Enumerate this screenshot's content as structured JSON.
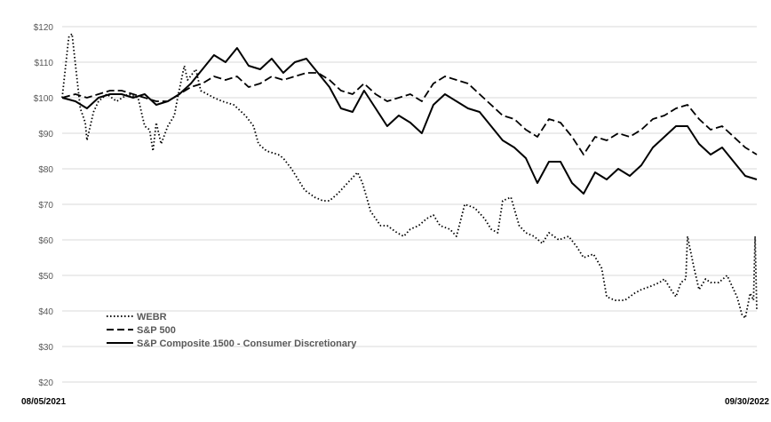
{
  "chart_data": {
    "type": "line",
    "title": "",
    "xlabel": "",
    "ylabel": "",
    "x_labels": [
      "08/05/2021",
      "09/30/2022"
    ],
    "x_range": [
      "2021-08-05",
      "2022-09-30"
    ],
    "y_ticks": [
      "$20",
      "$30",
      "$40",
      "$50",
      "$60",
      "$70",
      "$80",
      "$90",
      "$100",
      "$110",
      "$120"
    ],
    "ylim": [
      20,
      120
    ],
    "grid": "horizontal",
    "legend_position": "bottom-left",
    "series": [
      {
        "name": "WEBR",
        "style": "dotted",
        "color": "#000000",
        "points": [
          [
            "2021-08-05",
            100
          ],
          [
            "2021-08-09",
            117
          ],
          [
            "2021-08-11",
            118
          ],
          [
            "2021-08-16",
            97
          ],
          [
            "2021-08-19",
            93
          ],
          [
            "2021-08-20",
            88
          ],
          [
            "2021-08-24",
            96
          ],
          [
            "2021-08-27",
            99
          ],
          [
            "2021-09-01",
            101
          ],
          [
            "2021-09-07",
            99
          ],
          [
            "2021-09-14",
            101
          ],
          [
            "2021-09-20",
            100
          ],
          [
            "2021-09-24",
            92
          ],
          [
            "2021-09-27",
            91
          ],
          [
            "2021-09-29",
            85
          ],
          [
            "2021-10-01",
            93
          ],
          [
            "2021-10-04",
            87
          ],
          [
            "2021-10-08",
            92
          ],
          [
            "2021-10-12",
            95
          ],
          [
            "2021-10-14",
            100
          ],
          [
            "2021-10-18",
            109
          ],
          [
            "2021-10-20",
            105
          ],
          [
            "2021-10-25",
            108
          ],
          [
            "2021-10-28",
            102
          ],
          [
            "2021-11-05",
            100
          ],
          [
            "2021-11-10",
            99
          ],
          [
            "2021-11-17",
            98
          ],
          [
            "2021-11-24",
            95
          ],
          [
            "2021-11-29",
            92
          ],
          [
            "2021-12-02",
            87
          ],
          [
            "2021-12-07",
            85
          ],
          [
            "2021-12-14",
            84
          ],
          [
            "2021-12-17",
            83
          ],
          [
            "2021-12-22",
            80
          ],
          [
            "2021-12-30",
            74
          ],
          [
            "2022-01-05",
            72
          ],
          [
            "2022-01-10",
            71
          ],
          [
            "2022-01-14",
            71
          ],
          [
            "2022-01-19",
            73
          ],
          [
            "2022-01-25",
            76
          ],
          [
            "2022-01-31",
            79
          ],
          [
            "2022-02-03",
            76
          ],
          [
            "2022-02-08",
            68
          ],
          [
            "2022-02-14",
            64
          ],
          [
            "2022-02-18",
            64
          ],
          [
            "2022-02-24",
            62
          ],
          [
            "2022-02-28",
            61
          ],
          [
            "2022-03-04",
            63
          ],
          [
            "2022-03-09",
            64
          ],
          [
            "2022-03-14",
            66
          ],
          [
            "2022-03-18",
            67
          ],
          [
            "2022-03-22",
            64
          ],
          [
            "2022-03-28",
            63
          ],
          [
            "2022-04-01",
            61
          ],
          [
            "2022-04-06",
            70
          ],
          [
            "2022-04-12",
            69
          ],
          [
            "2022-04-18",
            66
          ],
          [
            "2022-04-22",
            63
          ],
          [
            "2022-04-26",
            62
          ],
          [
            "2022-04-29",
            71
          ],
          [
            "2022-05-04",
            72
          ],
          [
            "2022-05-09",
            64
          ],
          [
            "2022-05-13",
            62
          ],
          [
            "2022-05-18",
            61
          ],
          [
            "2022-05-23",
            59
          ],
          [
            "2022-05-27",
            62
          ],
          [
            "2022-06-02",
            60
          ],
          [
            "2022-06-08",
            61
          ],
          [
            "2022-06-13",
            58
          ],
          [
            "2022-06-17",
            55
          ],
          [
            "2022-06-23",
            56
          ],
          [
            "2022-06-28",
            52
          ],
          [
            "2022-07-01",
            44
          ],
          [
            "2022-07-06",
            43
          ],
          [
            "2022-07-12",
            43
          ],
          [
            "2022-07-18",
            45
          ],
          [
            "2022-07-22",
            46
          ],
          [
            "2022-07-28",
            47
          ],
          [
            "2022-08-02",
            48
          ],
          [
            "2022-08-05",
            49
          ],
          [
            "2022-08-09",
            46
          ],
          [
            "2022-08-12",
            44
          ],
          [
            "2022-08-15",
            48
          ],
          [
            "2022-08-18",
            49
          ],
          [
            "2022-08-19",
            61
          ],
          [
            "2022-08-23",
            52
          ],
          [
            "2022-08-26",
            46
          ],
          [
            "2022-08-30",
            49
          ],
          [
            "2022-09-02",
            48
          ],
          [
            "2022-09-07",
            48
          ],
          [
            "2022-09-12",
            50
          ],
          [
            "2022-09-15",
            47
          ],
          [
            "2022-09-18",
            44
          ],
          [
            "2022-09-21",
            39
          ],
          [
            "2022-09-23",
            38
          ],
          [
            "2022-09-26",
            45
          ],
          [
            "2022-09-28",
            43
          ],
          [
            "2022-09-29",
            61
          ],
          [
            "2022-09-30",
            40
          ]
        ]
      },
      {
        "name": "S&P 500",
        "style": "dashed",
        "color": "#000000",
        "points": [
          [
            "2021-08-05",
            100
          ],
          [
            "2021-08-13",
            101
          ],
          [
            "2021-08-20",
            100
          ],
          [
            "2021-08-27",
            101
          ],
          [
            "2021-09-03",
            102
          ],
          [
            "2021-09-10",
            102
          ],
          [
            "2021-09-17",
            101
          ],
          [
            "2021-09-24",
            100
          ],
          [
            "2021-10-01",
            99
          ],
          [
            "2021-10-08",
            99
          ],
          [
            "2021-10-15",
            101
          ],
          [
            "2021-10-22",
            103
          ],
          [
            "2021-10-29",
            104
          ],
          [
            "2021-11-05",
            106
          ],
          [
            "2021-11-12",
            105
          ],
          [
            "2021-11-19",
            106
          ],
          [
            "2021-11-26",
            103
          ],
          [
            "2021-12-03",
            104
          ],
          [
            "2021-12-10",
            106
          ],
          [
            "2021-12-17",
            105
          ],
          [
            "2021-12-24",
            106
          ],
          [
            "2021-12-31",
            107
          ],
          [
            "2022-01-07",
            107
          ],
          [
            "2022-01-14",
            105
          ],
          [
            "2022-01-21",
            102
          ],
          [
            "2022-01-28",
            101
          ],
          [
            "2022-02-04",
            104
          ],
          [
            "2022-02-11",
            101
          ],
          [
            "2022-02-18",
            99
          ],
          [
            "2022-02-25",
            100
          ],
          [
            "2022-03-04",
            101
          ],
          [
            "2022-03-11",
            99
          ],
          [
            "2022-03-18",
            104
          ],
          [
            "2022-03-25",
            106
          ],
          [
            "2022-04-01",
            105
          ],
          [
            "2022-04-08",
            104
          ],
          [
            "2022-04-15",
            101
          ],
          [
            "2022-04-22",
            98
          ],
          [
            "2022-04-29",
            95
          ],
          [
            "2022-05-06",
            94
          ],
          [
            "2022-05-13",
            91
          ],
          [
            "2022-05-20",
            89
          ],
          [
            "2022-05-27",
            94
          ],
          [
            "2022-06-03",
            93
          ],
          [
            "2022-06-10",
            89
          ],
          [
            "2022-06-17",
            84
          ],
          [
            "2022-06-24",
            89
          ],
          [
            "2022-07-01",
            88
          ],
          [
            "2022-07-08",
            90
          ],
          [
            "2022-07-15",
            89
          ],
          [
            "2022-07-22",
            91
          ],
          [
            "2022-07-29",
            94
          ],
          [
            "2022-08-05",
            95
          ],
          [
            "2022-08-12",
            97
          ],
          [
            "2022-08-19",
            98
          ],
          [
            "2022-08-26",
            94
          ],
          [
            "2022-09-02",
            91
          ],
          [
            "2022-09-09",
            92
          ],
          [
            "2022-09-16",
            89
          ],
          [
            "2022-09-23",
            86
          ],
          [
            "2022-09-30",
            84
          ]
        ]
      },
      {
        "name": "S&P Composite 1500 - Consumer Discretionary",
        "style": "solid",
        "color": "#000000",
        "points": [
          [
            "2021-08-05",
            100
          ],
          [
            "2021-08-13",
            99
          ],
          [
            "2021-08-20",
            97
          ],
          [
            "2021-08-27",
            100
          ],
          [
            "2021-09-03",
            101
          ],
          [
            "2021-09-10",
            101
          ],
          [
            "2021-09-17",
            100
          ],
          [
            "2021-09-24",
            101
          ],
          [
            "2021-10-01",
            98
          ],
          [
            "2021-10-08",
            99
          ],
          [
            "2021-10-15",
            101
          ],
          [
            "2021-10-22",
            104
          ],
          [
            "2021-10-29",
            108
          ],
          [
            "2021-11-05",
            112
          ],
          [
            "2021-11-12",
            110
          ],
          [
            "2021-11-19",
            114
          ],
          [
            "2021-11-26",
            109
          ],
          [
            "2021-12-03",
            108
          ],
          [
            "2021-12-10",
            111
          ],
          [
            "2021-12-17",
            107
          ],
          [
            "2021-12-24",
            110
          ],
          [
            "2021-12-31",
            111
          ],
          [
            "2022-01-07",
            107
          ],
          [
            "2022-01-14",
            103
          ],
          [
            "2022-01-21",
            97
          ],
          [
            "2022-01-28",
            96
          ],
          [
            "2022-02-04",
            102
          ],
          [
            "2022-02-11",
            97
          ],
          [
            "2022-02-18",
            92
          ],
          [
            "2022-02-25",
            95
          ],
          [
            "2022-03-04",
            93
          ],
          [
            "2022-03-11",
            90
          ],
          [
            "2022-03-18",
            98
          ],
          [
            "2022-03-25",
            101
          ],
          [
            "2022-04-01",
            99
          ],
          [
            "2022-04-08",
            97
          ],
          [
            "2022-04-15",
            96
          ],
          [
            "2022-04-22",
            92
          ],
          [
            "2022-04-29",
            88
          ],
          [
            "2022-05-06",
            86
          ],
          [
            "2022-05-13",
            83
          ],
          [
            "2022-05-20",
            76
          ],
          [
            "2022-05-27",
            82
          ],
          [
            "2022-06-03",
            82
          ],
          [
            "2022-06-10",
            76
          ],
          [
            "2022-06-17",
            73
          ],
          [
            "2022-06-24",
            79
          ],
          [
            "2022-07-01",
            77
          ],
          [
            "2022-07-08",
            80
          ],
          [
            "2022-07-15",
            78
          ],
          [
            "2022-07-22",
            81
          ],
          [
            "2022-07-29",
            86
          ],
          [
            "2022-08-05",
            89
          ],
          [
            "2022-08-12",
            92
          ],
          [
            "2022-08-19",
            92
          ],
          [
            "2022-08-26",
            87
          ],
          [
            "2022-09-02",
            84
          ],
          [
            "2022-09-09",
            86
          ],
          [
            "2022-09-16",
            82
          ],
          [
            "2022-09-23",
            78
          ],
          [
            "2022-09-30",
            77
          ]
        ]
      }
    ]
  }
}
